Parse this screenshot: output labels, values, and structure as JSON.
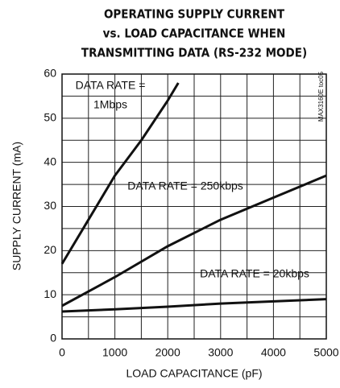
{
  "chart_data": {
    "type": "line",
    "title": [
      "OPERATING SUPPLY CURRENT",
      "vs. LOAD CAPACITANCE WHEN",
      "TRANSMITTING DATA (RS-232 MODE)"
    ],
    "xlabel": "LOAD CAPACITANCE (pF)",
    "ylabel": "SUPPLY CURRENT (mA)",
    "xlim": [
      0,
      5000
    ],
    "ylim": [
      0,
      60
    ],
    "xticks": [
      0,
      1000,
      2000,
      3000,
      4000,
      5000
    ],
    "yticks": [
      0,
      10,
      20,
      30,
      40,
      50,
      60
    ],
    "xgrid": [
      0,
      500,
      1000,
      1500,
      2000,
      2500,
      3000,
      3500,
      4000,
      4500,
      5000
    ],
    "ygrid": [
      0,
      5,
      10,
      15,
      20,
      25,
      30,
      35,
      40,
      45,
      50,
      55,
      60
    ],
    "series": [
      {
        "color": "#111111",
        "x": [
          0,
          500,
          1000,
          1500,
          2000,
          2200
        ],
        "values": [
          17,
          27,
          37,
          45,
          54,
          58
        ]
      },
      {
        "color": "#111111",
        "x": [
          0,
          1000,
          2000,
          3000,
          4000,
          5000
        ],
        "values": [
          7.5,
          14,
          21,
          27,
          32,
          37
        ]
      },
      {
        "color": "#111111",
        "x": [
          0,
          1000,
          2000,
          3000,
          4000,
          5000
        ],
        "values": [
          6.2,
          6.7,
          7.3,
          8,
          8.5,
          9
        ]
      }
    ],
    "annotations": [
      "DATA RATE =",
      "1Mbps",
      "DATA RATE = 250kbps",
      "DATA RATE = 20kbps",
      "MAX3160E toc05"
    ]
  }
}
